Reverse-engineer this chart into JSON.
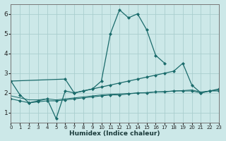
{
  "xlabel": "Humidex (Indice chaleur)",
  "bg_color": "#cce8e8",
  "line_color": "#1a6b6b",
  "grid_color": "#aacece",
  "xlim": [
    0,
    23
  ],
  "ylim": [
    0.5,
    6.5
  ],
  "yticks": [
    1,
    2,
    3,
    4,
    5,
    6
  ],
  "xtick_labels": [
    "0",
    "1",
    "2",
    "3",
    "4",
    "5",
    "6",
    "7",
    "8",
    "9",
    "10",
    "11",
    "12",
    "13",
    "14",
    "15",
    "16",
    "17",
    "18",
    "19",
    "20",
    "21",
    "22",
    "23"
  ],
  "line1_x": [
    0,
    1,
    2,
    3,
    4,
    5,
    6,
    7,
    8,
    9,
    10,
    11,
    12,
    13,
    14,
    15,
    16,
    17
  ],
  "line1_y": [
    2.6,
    1.9,
    1.5,
    1.6,
    1.7,
    0.7,
    2.1,
    2.0,
    2.1,
    2.2,
    2.6,
    5.0,
    6.2,
    5.8,
    6.0,
    5.2,
    3.9,
    3.5
  ],
  "line2_x": [
    0,
    1,
    2,
    3,
    4,
    5,
    6,
    7,
    8,
    9,
    10,
    11,
    12,
    13,
    14,
    15,
    16,
    17,
    18,
    19,
    20,
    21,
    22,
    23
  ],
  "line2_y": [
    1.7,
    1.6,
    1.5,
    1.55,
    1.6,
    1.6,
    1.65,
    1.7,
    1.75,
    1.8,
    1.85,
    1.9,
    1.9,
    1.95,
    2.0,
    2.0,
    2.05,
    2.05,
    2.1,
    2.1,
    2.1,
    2.0,
    2.1,
    2.1
  ],
  "line3_x": [
    0,
    6,
    7,
    8,
    9,
    10,
    11,
    12,
    13,
    14,
    15,
    16,
    17,
    18,
    19,
    20,
    21,
    22,
    23
  ],
  "line3_y": [
    2.6,
    2.7,
    2.0,
    2.1,
    2.2,
    2.3,
    2.4,
    2.5,
    2.6,
    2.7,
    2.8,
    2.9,
    3.0,
    3.1,
    3.5,
    2.4,
    2.0,
    2.1,
    2.2
  ],
  "line4_x": [
    0,
    1,
    2,
    3,
    4,
    5,
    6,
    7,
    8,
    9,
    10,
    11,
    12,
    13,
    14,
    15,
    16,
    17,
    18,
    19,
    20,
    21,
    22,
    23
  ],
  "line4_y": [
    1.85,
    1.75,
    1.65,
    1.65,
    1.7,
    1.65,
    1.7,
    1.75,
    1.8,
    1.85,
    1.9,
    1.93,
    1.95,
    1.97,
    2.0,
    2.02,
    2.05,
    2.07,
    2.1,
    2.12,
    2.15,
    2.05,
    2.1,
    2.15
  ]
}
